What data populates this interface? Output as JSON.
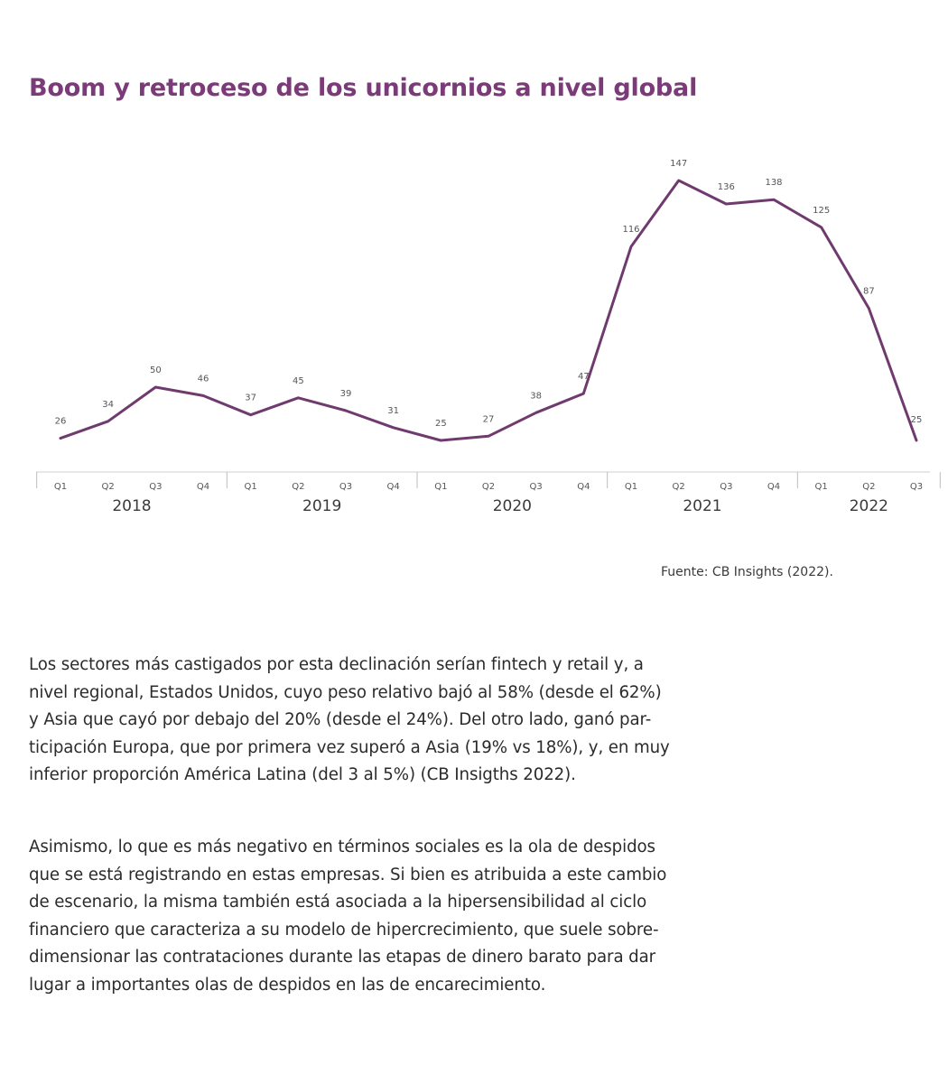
{
  "title": "Boom y retroceso de los unicornios a nivel global",
  "chart_data": {
    "type": "line",
    "x": [
      "Q1",
      "Q2",
      "Q3",
      "Q4",
      "Q1",
      "Q2",
      "Q3",
      "Q4",
      "Q1",
      "Q2",
      "Q3",
      "Q4",
      "Q1",
      "Q2",
      "Q3",
      "Q4",
      "Q1",
      "Q2",
      "Q3"
    ],
    "years": [
      {
        "label": "2018",
        "quarters": 4
      },
      {
        "label": "2019",
        "quarters": 4
      },
      {
        "label": "2020",
        "quarters": 4
      },
      {
        "label": "2021",
        "quarters": 4
      },
      {
        "label": "2022",
        "quarters": 3
      }
    ],
    "series": [
      {
        "values": [
          26,
          34,
          50,
          46,
          37,
          45,
          39,
          31,
          25,
          27,
          38,
          47,
          116,
          147,
          136,
          138,
          125,
          87,
          25
        ]
      }
    ],
    "data_labels": [
      "26",
      "34",
      "50",
      "46",
      "37",
      "45",
      "39",
      "31",
      "25",
      "27",
      "38",
      "47",
      "116",
      "147",
      "136",
      "138",
      "125",
      "87",
      "25"
    ],
    "line_color": "#6f3a6e",
    "ylim": [
      0,
      160
    ],
    "grid": false,
    "legend": "none"
  },
  "source": "Fuente: CB Insights (2022).",
  "paragraphs": [
    {
      "lines": [
        "Los sectores más castigados por esta declinación serían fintech y retail y, a",
        "nivel regional, Estados Unidos, cuyo peso relativo bajó al 58% (desde el 62%)",
        "y Asia que cayó por debajo del 20% (desde el 24%). Del otro lado, ganó par-",
        "ticipación Europa, que por primera vez superó a Asia (19% vs 18%), y, en muy",
        "inferior proporción América Latina (del 3 al 5%) (CB Insigths 2022)."
      ]
    },
    {
      "lines": [
        "Asimismo, lo que es más negativo en términos sociales es la ola de despidos",
        "que se está registrando en estas empresas. Si bien es atribuida a este cambio",
        "de escenario, la misma también está asociada a la hipersensibilidad al ciclo",
        "financiero que caracteriza a su modelo de hipercrecimiento, que suele sobre-",
        "dimensionar las contrataciones durante las etapas de dinero barato  para dar",
        "lugar a importantes olas de despidos en las de encarecimiento."
      ]
    }
  ]
}
